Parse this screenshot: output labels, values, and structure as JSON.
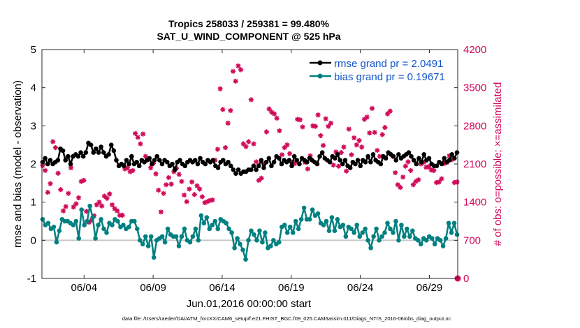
{
  "chart_data": {
    "type": "line",
    "title_line1": "Tropics 258033 / 259381 = 99.480%",
    "title_line2": "SAT_U_WIND_COMPONENT @ 525 hPa",
    "xlabel": "Jun.01,2016 00:00:00 start",
    "ylabel_left": "rmse and bias (model - observation)",
    "ylabel_right": "# of obs: o=possible; ×=assimilated",
    "footnote": "data file: /Users/raeder/DAI/ATM_forcXX/CAM6_setup/f.e21.FHIST_BGC.f09_025.CAM6assim.011/Diags_NTrS_2016-06/obs_diag_output.nc",
    "ylim_left": [
      -1,
      5
    ],
    "ylim_right": [
      0,
      4200
    ],
    "xlim": [
      0.95,
      31.05
    ],
    "xticks": [
      {
        "value": 4,
        "label": "06/04"
      },
      {
        "value": 9,
        "label": "06/09"
      },
      {
        "value": 14,
        "label": "06/14"
      },
      {
        "value": 19,
        "label": "06/19"
      },
      {
        "value": 24,
        "label": "06/24"
      },
      {
        "value": 29,
        "label": "06/29"
      }
    ],
    "yticks_left": [
      "-1",
      "0",
      "1",
      "2",
      "3",
      "4",
      "5"
    ],
    "yticks_right": [
      "0",
      "700",
      "1400",
      "2100",
      "2800",
      "3500",
      "4200"
    ],
    "colors": {
      "rmse": "#000000",
      "bias": "#008080",
      "obs": "#d10a59",
      "zero_line": "#c8c8c8"
    },
    "legend": [
      "rmse grand pr = 2.0491",
      "bias grand pr = 0.19671"
    ],
    "series": [
      {
        "name": "rmse",
        "axis": "left",
        "values": [
          2.05,
          2.15,
          2.0,
          2.1,
          2.0,
          2.05,
          2.1,
          2.4,
          2.35,
          2.1,
          2.2,
          2.0,
          2.2,
          2.25,
          2.2,
          2.3,
          2.2,
          2.3,
          2.55,
          2.5,
          2.3,
          2.4,
          2.3,
          2.45,
          2.3,
          2.2,
          2.25,
          2.5,
          2.35,
          2.1,
          1.95,
          2.0,
          1.95,
          2.1,
          2.0,
          2.2,
          2.0,
          2.05,
          1.95,
          2.1,
          2.05,
          2.1,
          2.15,
          2.0,
          2.1,
          2.2,
          2.1,
          2.0,
          2.1,
          2.05,
          1.95,
          2.0,
          1.85,
          2.05,
          2.1,
          2.0,
          1.95,
          2.05,
          2.1,
          2.05,
          2.1,
          2.0,
          2.15,
          2.05,
          2.0,
          2.1,
          2.05,
          2.1,
          1.95,
          1.9,
          2.05,
          2.1,
          2.0,
          2.05,
          1.95,
          1.85,
          1.75,
          1.85,
          1.75,
          1.8,
          1.8,
          1.85,
          1.85,
          1.95,
          1.85,
          1.95,
          2.1,
          1.9,
          2.05,
          2.15,
          1.95,
          2.05,
          2.2,
          2.15,
          2.0,
          2.1,
          2.05,
          2.1,
          1.95,
          2.2,
          2.1,
          2.0,
          2.15,
          2.1,
          2.05,
          2.15,
          2.1,
          2.05,
          2.0,
          2.2,
          2.3,
          2.15,
          2.1,
          2.05,
          2.2,
          2.15,
          2.25,
          2.1,
          2.0,
          2.1,
          1.95,
          1.9,
          2.05,
          2.0,
          2.1,
          1.95,
          2.1,
          2.05,
          2.2,
          2.05,
          2.25,
          2.1,
          2.05,
          2.0,
          2.2,
          2.15,
          2.3,
          2.25,
          2.2,
          2.1,
          2.25,
          2.15,
          2.2,
          2.25,
          2.3,
          2.2,
          2.1,
          2.0,
          2.15,
          2.05,
          2.25,
          2.1,
          2.15,
          2.0,
          1.95,
          1.95,
          2.05,
          2.0,
          2.15,
          2.05,
          2.1,
          2.25,
          2.15,
          2.3
        ]
      },
      {
        "name": "bias",
        "axis": "left",
        "values": [
          0.55,
          0.4,
          0.45,
          0.3,
          0.35,
          -0.05,
          0.25,
          0.55,
          0.5,
          0.5,
          0.45,
          0.4,
          0.5,
          0.05,
          0.8,
          0.4,
          0.5,
          0.9,
          0.6,
          0.05,
          0.4,
          0.55,
          0.3,
          0.2,
          0.45,
          0.4,
          0.55,
          0.5,
          0.35,
          0.4,
          0.3,
          0.35,
          0.5,
          0.5,
          0.3,
          0.0,
          -0.1,
          0.1,
          -0.15,
          0.1,
          -0.45,
          0.0,
          0.05,
          0.1,
          -0.05,
          0.3,
          0.15,
          0.1,
          0.1,
          -0.15,
          0.1,
          0.3,
          0.0,
          -0.05,
          0.1,
          0.3,
          0.0,
          0.65,
          0.45,
          0.6,
          0.3,
          0.4,
          0.5,
          0.3,
          0.55,
          0.5,
          0.45,
          0.3,
          0.2,
          -0.2,
          0.05,
          -0.1,
          -0.25,
          -0.5,
          0.0,
          0.25,
          0.15,
          0.0,
          0.25,
          -0.05,
          0.2,
          -0.2,
          -0.15,
          0.0,
          -0.1,
          -0.05,
          0.35,
          0.4,
          0.2,
          0.35,
          0.2,
          0.5,
          0.3,
          0.55,
          0.85,
          0.55,
          0.55,
          0.8,
          0.65,
          0.7,
          0.45,
          0.4,
          0.5,
          0.25,
          0.6,
          0.25,
          0.55,
          0.35,
          0.4,
          0.1,
          0.35,
          0.3,
          0.2,
          0.4,
          0.1,
          0.2,
          0.3,
          0.0,
          -0.2,
          0.1,
          0.3,
          0.0,
          0.1,
          0.2,
          0.45,
          0.3,
          0.2,
          0.5,
          0.0,
          0.4,
          0.1,
          0.3,
          0.1,
          0.25,
          0.05,
          0.0,
          -0.1,
          0.05,
          0.0,
          0.1,
          0.05,
          -0.1,
          0.05,
          0.0,
          -0.15,
          0.05,
          0.45,
          0.2,
          0.45,
          0.15
        ]
      },
      {
        "name": "obs_assimilated",
        "axis": "right",
        "values": [
          2070,
          1980,
          1580,
          1740,
          2510,
          2400,
          1930,
          1630,
          1240,
          1320,
          1560,
          2030,
          1310,
          1370,
          1480,
          1780,
          1800,
          1230,
          1030,
          1070,
          1150,
          1350,
          1400,
          1330,
          1510,
          1470,
          1550,
          1350,
          1280,
          1240,
          1160,
          1160,
          2010,
          2030,
          1960,
          1980,
          2660,
          2590,
          2470,
          2650,
          2240,
          2180,
          2030,
          2110,
          1920,
          1620,
          1220,
          1560,
          1720,
          1850,
          1730,
          1960,
          2020,
          1910,
          1780,
          1530,
          1410,
          1640,
          1770,
          1540,
          1700,
          1640,
          1500,
          1390,
          1410,
          1430,
          1440,
          2170,
          2370,
          3480,
          3100,
          2400,
          2850,
          3080,
          3800,
          3620,
          3900,
          3830,
          2470,
          2420,
          2510,
          3280,
          2470,
          2140,
          1800,
          1840,
          2100,
          2690,
          3110,
          3050,
          3020,
          2940,
          2710,
          2270,
          2400,
          2450,
          2290,
          2130,
          2110,
          2920,
          2910,
          2780,
          2130,
          2010,
          2250,
          2800,
          2790,
          3000,
          2620,
          2440,
          2930,
          2790,
          2850,
          2080,
          2320,
          2060,
          2310,
          2410,
          1970,
          2740,
          2270,
          2580,
          2450,
          2530,
          2410,
          2920,
          2960,
          2670,
          3120,
          2680,
          2350,
          2240,
          2640,
          2770,
          3020,
          3070,
          2240,
          1940,
          1720,
          1670,
          1860,
          2060,
          2140,
          1980,
          1720,
          1780,
          1810,
          2100,
          2130,
          2040,
          2050,
          1990,
          1980,
          1760,
          1770,
          1830,
          2110,
          2130,
          2250,
          2180,
          1760,
          1770
        ]
      },
      {
        "name": "obs_possible",
        "axis": "right",
        "values": [
          0
        ]
      }
    ]
  }
}
